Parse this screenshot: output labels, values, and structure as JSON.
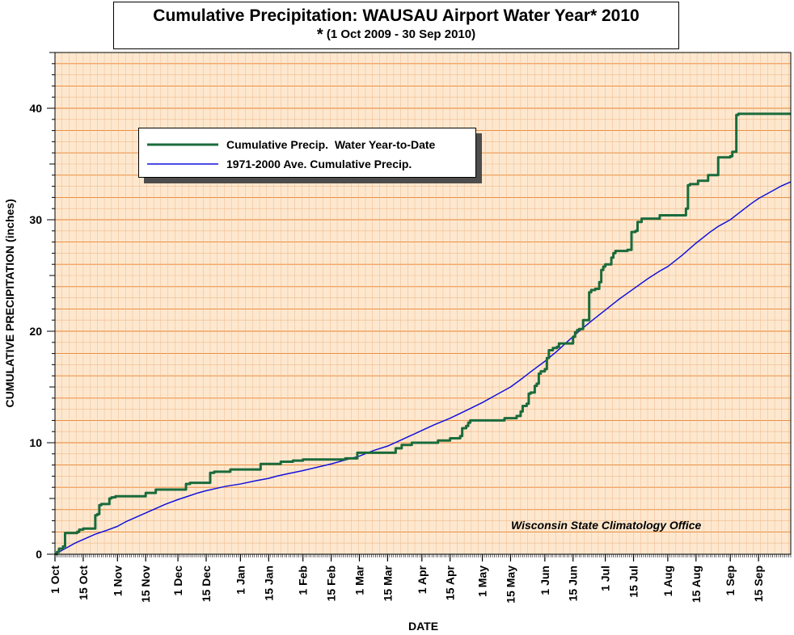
{
  "title": "Cumulative Precipitation: WAUSAU Airport Water Year* 2010",
  "subtitle_star": "*",
  "subtitle": "(1 Oct 2009 - 30 Sep 2010)",
  "credit": "Wisconsin State Climatology Office",
  "colors": {
    "background": "#fde8cf",
    "grid_minor": "#f0b98a",
    "grid_major": "#e8802c",
    "series_observed": "#1a6b3c",
    "series_average": "#1111dd"
  },
  "chart_data": {
    "type": "line",
    "title": "Cumulative Precipitation: WAUSAU Airport Water Year* 2010",
    "subtitle": "* (1 Oct 2009 - 30 Sep 2010)",
    "xlabel": "DATE",
    "ylabel": "CUMULATIVE PRECIPITATION (inches)",
    "x_units": "day of water year (0 = 1 Oct 2009)",
    "xlim": [
      0,
      365
    ],
    "ylim": [
      0,
      45
    ],
    "yticks": [
      0,
      10,
      20,
      30,
      40
    ],
    "xtick_labels": [
      {
        "day": 0,
        "label": "1 Oct"
      },
      {
        "day": 14,
        "label": "15 Oct"
      },
      {
        "day": 31,
        "label": "1 Nov"
      },
      {
        "day": 45,
        "label": "15 Nov"
      },
      {
        "day": 61,
        "label": "1 Dec"
      },
      {
        "day": 75,
        "label": "15 Dec"
      },
      {
        "day": 92,
        "label": "1 Jan"
      },
      {
        "day": 106,
        "label": "15 Jan"
      },
      {
        "day": 123,
        "label": "1 Feb"
      },
      {
        "day": 137,
        "label": "15 Feb"
      },
      {
        "day": 151,
        "label": "1 Mar"
      },
      {
        "day": 165,
        "label": "15 Mar"
      },
      {
        "day": 182,
        "label": "1 Apr"
      },
      {
        "day": 196,
        "label": "15 Apr"
      },
      {
        "day": 212,
        "label": "1 May"
      },
      {
        "day": 226,
        "label": "15 May"
      },
      {
        "day": 243,
        "label": "1 Jun"
      },
      {
        "day": 257,
        "label": "15 Jun"
      },
      {
        "day": 273,
        "label": "1 Jul"
      },
      {
        "day": 287,
        "label": "15 Jul"
      },
      {
        "day": 304,
        "label": "1 Aug"
      },
      {
        "day": 318,
        "label": "15 Aug"
      },
      {
        "day": 335,
        "label": "1 Sep"
      },
      {
        "day": 349,
        "label": "15 Sep"
      }
    ],
    "grid": true,
    "legend_position": "upper-left",
    "series": [
      {
        "name": "Cumulative Precip.  Water Year-to-Date",
        "style": "step",
        "points": [
          [
            0,
            0
          ],
          [
            1,
            0.2
          ],
          [
            2,
            0.5
          ],
          [
            4,
            0.7
          ],
          [
            5,
            1.9
          ],
          [
            10,
            1.9
          ],
          [
            11,
            2.0
          ],
          [
            12,
            2.2
          ],
          [
            14,
            2.3
          ],
          [
            19,
            2.3
          ],
          [
            20,
            3.5
          ],
          [
            21,
            3.6
          ],
          [
            22,
            4.4
          ],
          [
            23,
            4.5
          ],
          [
            26,
            4.5
          ],
          [
            27,
            5.0
          ],
          [
            28,
            5.1
          ],
          [
            29,
            5.1
          ],
          [
            30,
            5.2
          ],
          [
            44,
            5.2
          ],
          [
            45,
            5.5
          ],
          [
            49,
            5.5
          ],
          [
            50,
            5.8
          ],
          [
            64,
            5.8
          ],
          [
            65,
            6.3
          ],
          [
            67,
            6.4
          ],
          [
            76,
            6.4
          ],
          [
            77,
            7.3
          ],
          [
            79,
            7.4
          ],
          [
            86,
            7.4
          ],
          [
            87,
            7.6
          ],
          [
            101,
            7.6
          ],
          [
            102,
            8.1
          ],
          [
            111,
            8.1
          ],
          [
            112,
            8.3
          ],
          [
            117,
            8.3
          ],
          [
            118,
            8.4
          ],
          [
            122,
            8.4
          ],
          [
            123,
            8.5
          ],
          [
            143,
            8.5
          ],
          [
            144,
            8.6
          ],
          [
            148,
            8.6
          ],
          [
            150,
            9.1
          ],
          [
            168,
            9.1
          ],
          [
            169,
            9.5
          ],
          [
            171,
            9.5
          ],
          [
            172,
            9.8
          ],
          [
            176,
            9.8
          ],
          [
            177,
            10.0
          ],
          [
            189,
            10.0
          ],
          [
            190,
            10.2
          ],
          [
            195,
            10.2
          ],
          [
            196,
            10.4
          ],
          [
            200,
            10.4
          ],
          [
            201,
            10.6
          ],
          [
            202,
            11.3
          ],
          [
            204,
            11.5
          ],
          [
            205,
            11.8
          ],
          [
            206,
            12.0
          ],
          [
            222,
            12.0
          ],
          [
            223,
            12.2
          ],
          [
            228,
            12.2
          ],
          [
            229,
            12.4
          ],
          [
            231,
            12.8
          ],
          [
            232,
            13.3
          ],
          [
            234,
            13.5
          ],
          [
            235,
            14.4
          ],
          [
            236,
            14.5
          ],
          [
            238,
            15.1
          ],
          [
            239,
            15.3
          ],
          [
            240,
            16.2
          ],
          [
            241,
            16.4
          ],
          [
            243,
            16.6
          ],
          [
            244,
            17.6
          ],
          [
            245,
            18.3
          ],
          [
            247,
            18.5
          ],
          [
            249,
            18.6
          ],
          [
            250,
            18.9
          ],
          [
            256,
            18.9
          ],
          [
            257,
            19.5
          ],
          [
            258,
            19.9
          ],
          [
            259,
            20.1
          ],
          [
            260,
            20.2
          ],
          [
            262,
            21.0
          ],
          [
            264,
            21.0
          ],
          [
            265,
            23.5
          ],
          [
            266,
            23.7
          ],
          [
            268,
            23.8
          ],
          [
            270,
            24.4
          ],
          [
            271,
            25.5
          ],
          [
            272,
            25.8
          ],
          [
            273,
            26.0
          ],
          [
            275,
            26.0
          ],
          [
            276,
            26.6
          ],
          [
            277,
            27.0
          ],
          [
            278,
            27.2
          ],
          [
            284,
            27.3
          ],
          [
            286,
            28.9
          ],
          [
            288,
            29.0
          ],
          [
            289,
            29.8
          ],
          [
            291,
            30.1
          ],
          [
            299,
            30.1
          ],
          [
            300,
            30.4
          ],
          [
            312,
            30.4
          ],
          [
            313,
            31.0
          ],
          [
            314,
            33.1
          ],
          [
            315,
            33.2
          ],
          [
            318,
            33.2
          ],
          [
            319,
            33.5
          ],
          [
            323,
            33.5
          ],
          [
            324,
            34.0
          ],
          [
            328,
            34.0
          ],
          [
            329,
            35.6
          ],
          [
            335,
            35.7
          ],
          [
            336,
            36.1
          ],
          [
            338,
            39.4
          ],
          [
            339,
            39.5
          ],
          [
            365,
            39.5
          ]
        ]
      },
      {
        "name": "1971-2000 Ave. Cumulative Precip.",
        "style": "line",
        "points": [
          [
            0,
            0
          ],
          [
            5,
            0.5
          ],
          [
            10,
            1.0
          ],
          [
            15,
            1.4
          ],
          [
            20,
            1.8
          ],
          [
            25,
            2.1
          ],
          [
            31,
            2.5
          ],
          [
            35,
            2.9
          ],
          [
            40,
            3.3
          ],
          [
            45,
            3.7
          ],
          [
            50,
            4.1
          ],
          [
            55,
            4.5
          ],
          [
            61,
            4.9
          ],
          [
            66,
            5.2
          ],
          [
            71,
            5.5
          ],
          [
            75,
            5.7
          ],
          [
            80,
            5.9
          ],
          [
            85,
            6.1
          ],
          [
            92,
            6.3
          ],
          [
            100,
            6.6
          ],
          [
            106,
            6.8
          ],
          [
            110,
            7.0
          ],
          [
            115,
            7.2
          ],
          [
            123,
            7.5
          ],
          [
            130,
            7.8
          ],
          [
            137,
            8.1
          ],
          [
            145,
            8.5
          ],
          [
            151,
            8.8
          ],
          [
            158,
            9.3
          ],
          [
            165,
            9.7
          ],
          [
            170,
            10.1
          ],
          [
            176,
            10.6
          ],
          [
            182,
            11.1
          ],
          [
            188,
            11.6
          ],
          [
            196,
            12.2
          ],
          [
            203,
            12.8
          ],
          [
            212,
            13.6
          ],
          [
            220,
            14.4
          ],
          [
            226,
            15.0
          ],
          [
            232,
            15.8
          ],
          [
            237,
            16.5
          ],
          [
            243,
            17.3
          ],
          [
            249,
            18.2
          ],
          [
            255,
            19.2
          ],
          [
            260,
            20.0
          ],
          [
            266,
            20.9
          ],
          [
            273,
            21.9
          ],
          [
            280,
            22.9
          ],
          [
            287,
            23.8
          ],
          [
            294,
            24.7
          ],
          [
            300,
            25.4
          ],
          [
            304,
            25.8
          ],
          [
            311,
            26.8
          ],
          [
            318,
            27.9
          ],
          [
            325,
            28.9
          ],
          [
            329,
            29.4
          ],
          [
            335,
            30.0
          ],
          [
            340,
            30.7
          ],
          [
            345,
            31.4
          ],
          [
            349,
            31.9
          ],
          [
            355,
            32.5
          ],
          [
            360,
            33.0
          ],
          [
            365,
            33.4
          ]
        ]
      }
    ]
  }
}
